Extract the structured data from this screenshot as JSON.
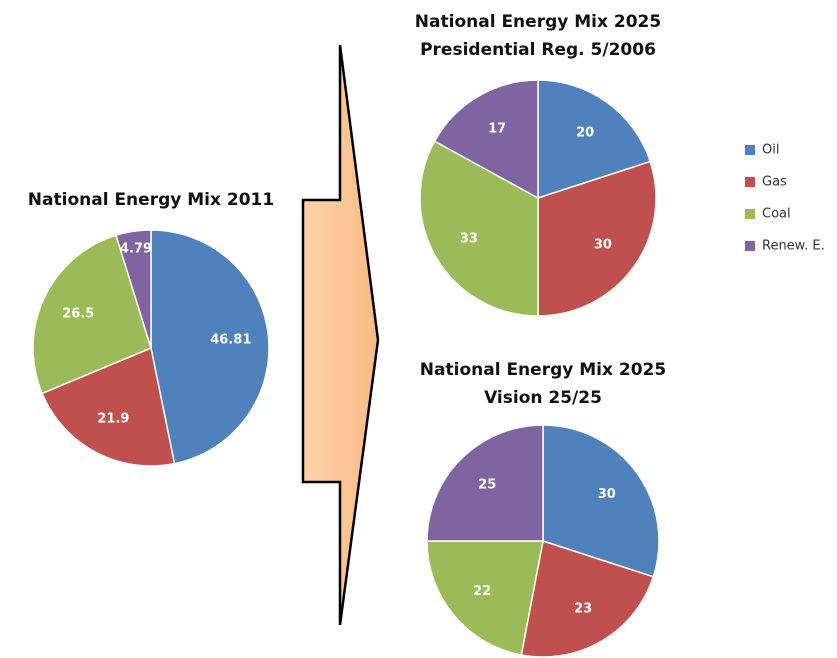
{
  "chart_data": [
    {
      "type": "pie",
      "title": "National Energy Mix 2011",
      "categories": [
        "Oil",
        "Gas",
        "Coal",
        "Renew. E."
      ],
      "values": [
        46.81,
        21.9,
        26.5,
        4.79
      ],
      "colors": [
        "#4f81bd",
        "#c0504d",
        "#9bbb59",
        "#8064a2"
      ]
    },
    {
      "type": "pie",
      "title": "National Energy Mix 2025",
      "subtitle": "Presidential Reg. 5/2006",
      "categories": [
        "Oil",
        "Gas",
        "Coal",
        "Renew. E."
      ],
      "values": [
        20,
        30,
        33,
        17
      ],
      "colors": [
        "#4f81bd",
        "#c0504d",
        "#9bbb59",
        "#8064a2"
      ]
    },
    {
      "type": "pie",
      "title": "National Energy Mix 2025",
      "subtitle": "Vision 25/25",
      "categories": [
        "Oil",
        "Gas",
        "Coal",
        "Renew. E."
      ],
      "values": [
        30,
        23,
        22,
        25
      ],
      "colors": [
        "#4f81bd",
        "#c0504d",
        "#9bbb59",
        "#8064a2"
      ]
    }
  ]
}
